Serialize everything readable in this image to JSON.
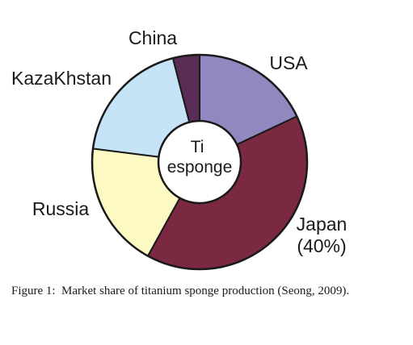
{
  "chart_data": {
    "type": "pie",
    "donut": true,
    "center_label": [
      "Ti",
      "esponge"
    ],
    "slices": [
      {
        "label": [
          "USA"
        ],
        "value": 18,
        "color": "#9088bf"
      },
      {
        "label": [
          "Japan",
          "(40%)"
        ],
        "value": 40,
        "color": "#7a2940"
      },
      {
        "label": [
          "Russia"
        ],
        "value": 19,
        "color": "#fdf9c2"
      },
      {
        "label": [
          "KazaKhstan"
        ],
        "value": 19,
        "color": "#c6e4f7"
      },
      {
        "label": [
          "China"
        ],
        "value": 4,
        "color": "#5a2d57"
      }
    ],
    "stroke_color": "#1a1a1a"
  },
  "caption": {
    "number": "Figure 1:",
    "text": "Market share of titanium sponge production (Seong, 2009)."
  }
}
